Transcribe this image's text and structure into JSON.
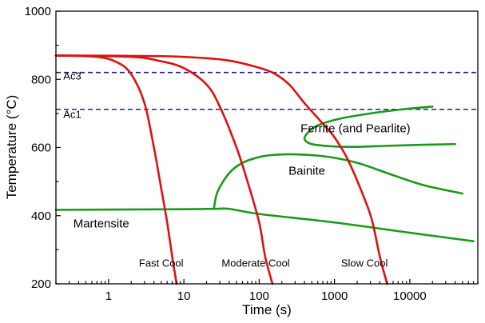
{
  "chart_data": {
    "type": "line",
    "xlabel": "Time (s)",
    "ylabel": "Temperature (°C)",
    "x_scale": "log",
    "xlim": [
      0.2,
      80000
    ],
    "ylim": [
      200,
      1000
    ],
    "x_ticks": [
      {
        "value": 1,
        "label": "1"
      },
      {
        "value": 10,
        "label": "10"
      },
      {
        "value": 100,
        "label": "100"
      },
      {
        "value": 1000,
        "label": "1000"
      },
      {
        "value": 10000,
        "label": "10000"
      }
    ],
    "y_ticks": [
      {
        "value": 200,
        "label": "200"
      },
      {
        "value": 400,
        "label": "400"
      },
      {
        "value": 600,
        "label": "600"
      },
      {
        "value": 800,
        "label": "800"
      },
      {
        "value": 1000,
        "label": "1000"
      }
    ],
    "grid": false,
    "colors": {
      "cooling": "#dd1111",
      "transformation": "#1a9a1a",
      "critical": "#1f1fa0"
    },
    "reference_lines": [
      {
        "label": "Ac3",
        "y": 820,
        "color": "#1f1fa0",
        "style": "dashed"
      },
      {
        "label": "Ac1",
        "y": 712,
        "color": "#1f1fa0",
        "style": "dashed"
      }
    ],
    "cooling_curves": [
      {
        "label": "Fast Cool",
        "color": "#dd1111",
        "points": [
          [
            0.2,
            870
          ],
          [
            0.7,
            866
          ],
          [
            1.3,
            850
          ],
          [
            2,
            815
          ],
          [
            3,
            730
          ],
          [
            4,
            600
          ],
          [
            5,
            480
          ],
          [
            6,
            380
          ],
          [
            7,
            280
          ],
          [
            8,
            200
          ]
        ]
      },
      {
        "label": "Moderate Cool",
        "color": "#dd1111",
        "points": [
          [
            0.2,
            870
          ],
          [
            2,
            866
          ],
          [
            5,
            853
          ],
          [
            10,
            833
          ],
          [
            20,
            785
          ],
          [
            30,
            720
          ],
          [
            50,
            600
          ],
          [
            70,
            500
          ],
          [
            100,
            380
          ],
          [
            120,
            280
          ],
          [
            150,
            200
          ]
        ]
      },
      {
        "label": "Slow Cool",
        "color": "#dd1111",
        "points": [
          [
            0.2,
            870
          ],
          [
            5,
            868
          ],
          [
            20,
            862
          ],
          [
            40,
            855
          ],
          [
            80,
            840
          ],
          [
            150,
            820
          ],
          [
            250,
            785
          ],
          [
            400,
            730
          ],
          [
            700,
            670
          ],
          [
            1000,
            630
          ],
          [
            1500,
            565
          ],
          [
            2500,
            450
          ],
          [
            3200,
            380
          ],
          [
            4000,
            280
          ],
          [
            5000,
            200
          ]
        ]
      }
    ],
    "transformation_curves": [
      {
        "name": "ferrite-pearlite-nose",
        "color": "#1a9a1a",
        "points": [
          [
            20000,
            720
          ],
          [
            8000,
            712
          ],
          [
            3000,
            700
          ],
          [
            1200,
            685
          ],
          [
            600,
            665
          ],
          [
            450,
            645
          ],
          [
            400,
            625
          ],
          [
            500,
            610
          ],
          [
            1000,
            603
          ],
          [
            2000,
            602
          ],
          [
            5000,
            605
          ],
          [
            15000,
            608
          ],
          [
            40000,
            610
          ]
        ]
      },
      {
        "name": "bainite-upper",
        "color": "#1a9a1a",
        "points": [
          [
            25,
            420
          ],
          [
            28,
            470
          ],
          [
            40,
            525
          ],
          [
            60,
            555
          ],
          [
            100,
            572
          ],
          [
            150,
            578
          ],
          [
            300,
            580
          ],
          [
            800,
            573
          ],
          [
            2000,
            555
          ],
          [
            5000,
            525
          ],
          [
            15000,
            490
          ],
          [
            50000,
            465
          ]
        ]
      },
      {
        "name": "martensite-start",
        "color": "#1a9a1a",
        "points": [
          [
            0.2,
            417
          ],
          [
            10,
            419
          ],
          [
            25,
            420
          ],
          [
            40,
            420
          ],
          [
            100,
            405
          ],
          [
            1000,
            380
          ],
          [
            10000,
            350
          ],
          [
            70000,
            325
          ]
        ]
      }
    ],
    "annotations": [
      {
        "text": "Ferrite (and Pearlite)",
        "x": 1900,
        "y": 645,
        "size": 15
      },
      {
        "text": "Bainite",
        "x": 430,
        "y": 520,
        "size": 15
      },
      {
        "text": "Martensite",
        "x": 0.8,
        "y": 365,
        "size": 15
      },
      {
        "text": "Fast Cool",
        "x": 5,
        "y": 250,
        "size": 13
      },
      {
        "text": "Moderate Cool",
        "x": 90,
        "y": 250,
        "size": 13
      },
      {
        "text": "Slow Cool",
        "x": 2500,
        "y": 250,
        "size": 13
      },
      {
        "text": "Ac3",
        "x": 0.33,
        "y": 800,
        "size": 13
      },
      {
        "text": "Ac1",
        "x": 0.33,
        "y": 687,
        "size": 13
      }
    ]
  }
}
